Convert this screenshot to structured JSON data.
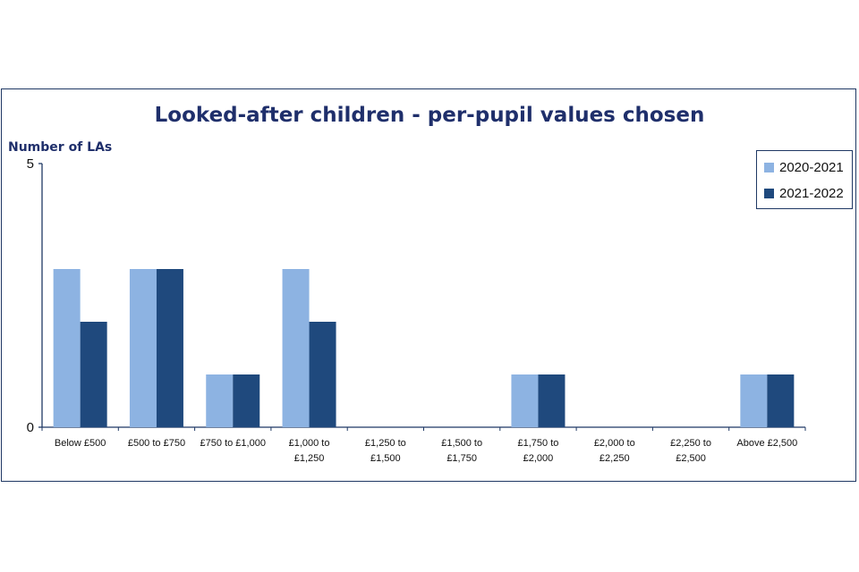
{
  "chart_data": {
    "type": "bar",
    "title": "Looked-after children - per-pupil values chosen",
    "ylabel": "Number of LAs",
    "xlabel": "",
    "ylim": [
      0,
      5
    ],
    "yticks": [
      "0",
      "5"
    ],
    "grid": false,
    "legend_position": "top-right",
    "categories": [
      [
        "Below £500"
      ],
      [
        "£500 to £750"
      ],
      [
        "£750 to £1,000"
      ],
      [
        "£1,000 to",
        "£1,250"
      ],
      [
        "£1,250 to",
        "£1,500"
      ],
      [
        "£1,500 to",
        "£1,750"
      ],
      [
        "£1,750 to",
        "£2,000"
      ],
      [
        "£2,000 to",
        "£2,250"
      ],
      [
        "£2,250 to",
        "£2,500"
      ],
      [
        "Above £2,500"
      ]
    ],
    "series": [
      {
        "name": "2020-2021",
        "color": "#8db3e2",
        "values": [
          3,
          3,
          1,
          3,
          0,
          0,
          1,
          0,
          0,
          1
        ]
      },
      {
        "name": "2021-2022",
        "color": "#1f497d",
        "values": [
          2,
          3,
          1,
          2,
          0,
          0,
          1,
          0,
          0,
          1
        ]
      }
    ]
  },
  "colors": {
    "frame": "#1f3864",
    "title": "#1f2f6b",
    "axis": "#1f3864"
  }
}
